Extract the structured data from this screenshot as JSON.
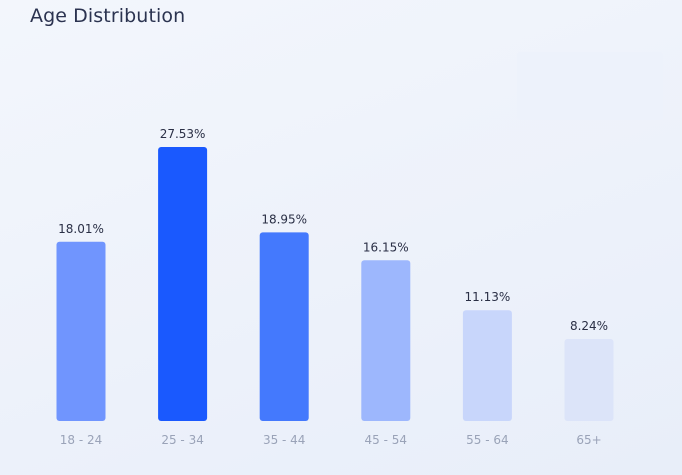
{
  "title": "Age Distribution",
  "colors": {
    "bars": [
      "#7095fe",
      "#1a59fe",
      "#4479fd",
      "#9db7fd",
      "#c8d6fb",
      "#dce4f9"
    ]
  },
  "chart_data": {
    "type": "bar",
    "title": "Age Distribution",
    "xlabel": "",
    "ylabel": "",
    "categories": [
      "18 - 24",
      "25 - 34",
      "35 - 44",
      "45 - 54",
      "55 - 64",
      "65+"
    ],
    "values": [
      18.01,
      27.53,
      18.95,
      16.15,
      11.13,
      8.24
    ],
    "value_labels": [
      "18.01%",
      "27.53%",
      "18.95%",
      "16.15%",
      "11.13%",
      "8.24%"
    ],
    "unit": "%",
    "ylim": [
      0,
      27.53
    ],
    "grid": false,
    "legend": "none"
  }
}
